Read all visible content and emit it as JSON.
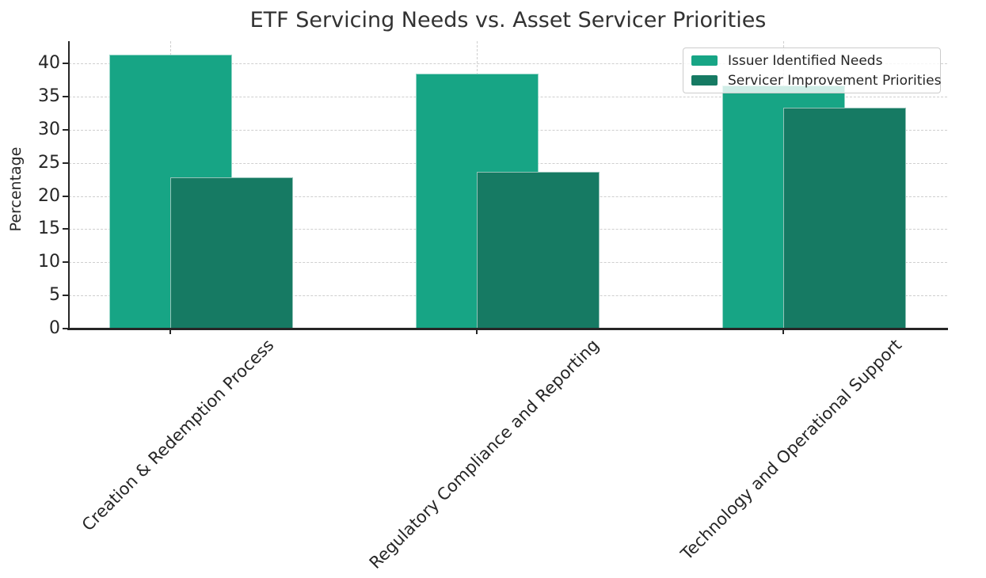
{
  "chart_data": {
    "type": "bar",
    "title": "ETF Servicing Needs vs. Asset Servicer Priorities",
    "xlabel": "",
    "ylabel": "Percentage",
    "categories": [
      "Creation & Redemption Process",
      "Regulatory Compliance and Reporting",
      "Technology and Operational Support"
    ],
    "series": [
      {
        "name": "Issuer Identified Needs",
        "color": "#17a585",
        "values": [
          41.4,
          38.5,
          36.7
        ]
      },
      {
        "name": "Servicer Improvement Priorities",
        "color": "#167a63",
        "values": [
          22.8,
          23.7,
          33.3
        ]
      }
    ],
    "yticks": [
      0,
      5,
      10,
      15,
      20,
      25,
      30,
      35,
      40
    ],
    "ylim": [
      0,
      43.4
    ],
    "grid": "dashed light-gray horizontal at each ytick and vertical at each category center, behind bars",
    "legend_position": "upper right, semi-transparent white box",
    "bar_style": "series overlap: first series centered on tick, second series shifted right by half bar width and drawn on top",
    "colors": {
      "background": "#ffffff",
      "axis": "#262626",
      "grid": "#cfcfcf",
      "text": "#262626"
    }
  }
}
